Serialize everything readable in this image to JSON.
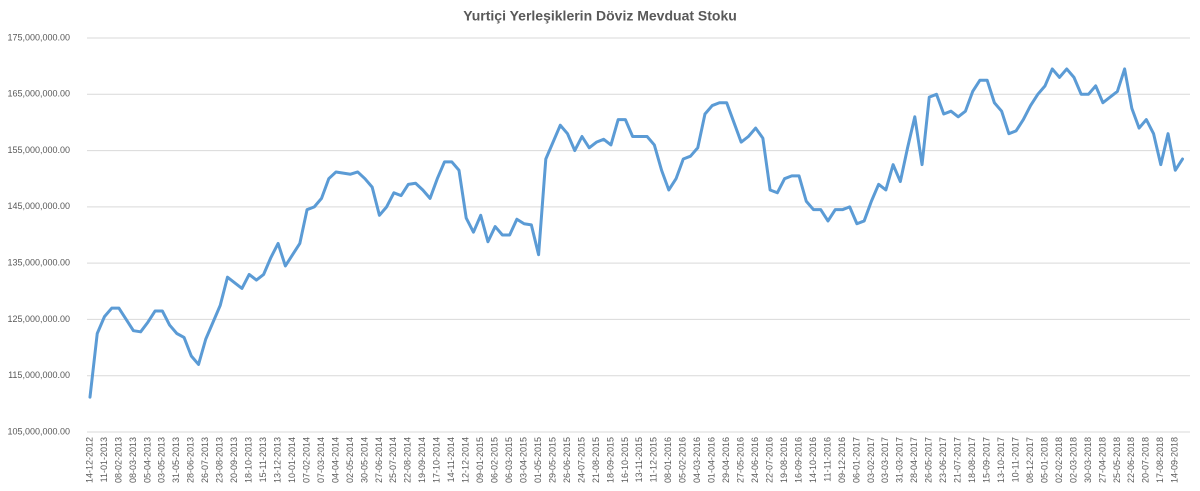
{
  "chart_data": {
    "type": "line",
    "title": "Yurtiçi Yerleşiklerin Döviz Mevduat Stoku",
    "categories": [
      "14-12-2012",
      null,
      "11-01-2013",
      null,
      "08-02-2013",
      null,
      "08-03-2013",
      null,
      "05-04-2013",
      null,
      "03-05-2013",
      null,
      "31-05-2013",
      null,
      "28-06-2013",
      null,
      "26-07-2013",
      null,
      "23-08-2013",
      null,
      "20-09-2013",
      null,
      "18-10-2013",
      null,
      "15-11-2013",
      null,
      "13-12-2013",
      null,
      "10-01-2014",
      null,
      "07-02-2014",
      null,
      "07-03-2014",
      null,
      "04-04-2014",
      null,
      "02-05-2014",
      null,
      "30-05-2014",
      null,
      "27-06-2014",
      null,
      "25-07-2014",
      null,
      "22-08-2014",
      null,
      "19-09-2014",
      null,
      "17-10-2014",
      null,
      "14-11-2014",
      null,
      "12-12-2014",
      null,
      "09-01-2015",
      null,
      "06-02-2015",
      null,
      "06-03-2015",
      null,
      "03-04-2015",
      null,
      "01-05-2015",
      null,
      "29-05-2015",
      null,
      "26-06-2015",
      null,
      "24-07-2015",
      null,
      "21-08-2015",
      null,
      "18-09-2015",
      null,
      "16-10-2015",
      null,
      "13-11-2015",
      null,
      "11-12-2015",
      null,
      "08-01-2016",
      null,
      "05-02-2016",
      null,
      "04-03-2016",
      null,
      "01-04-2016",
      null,
      "29-04-2016",
      null,
      "27-05-2016",
      null,
      "24-06-2016",
      null,
      "22-07-2016",
      null,
      "19-08-2016",
      null,
      "16-09-2016",
      null,
      "14-10-2016",
      null,
      "11-11-2016",
      null,
      "09-12-2016",
      null,
      "06-01-2017",
      null,
      "03-02-2017",
      null,
      "03-03-2017",
      null,
      "31-03-2017",
      null,
      "28-04-2017",
      null,
      "26-05-2017",
      null,
      "23-06-2017",
      null,
      "21-07-2017",
      null,
      "18-08-2017",
      null,
      "15-09-2017",
      null,
      "13-10-2017",
      null,
      "10-11-2017",
      null,
      "08-12-2017",
      null,
      "05-01-2018",
      null,
      "02-02-2018",
      null,
      "02-03-2018",
      null,
      "30-03-2018",
      null,
      "27-04-2018",
      null,
      "25-05-2018",
      null,
      "22-06-2018",
      null,
      "20-07-2018",
      null,
      "17-08-2018",
      null,
      "14-09-2018",
      null
    ],
    "values": [
      111200000,
      122500000,
      125500000,
      127000000,
      127000000,
      125000000,
      123000000,
      122800000,
      124500000,
      126500000,
      126500000,
      124000000,
      122500000,
      121800000,
      118500000,
      117000000,
      121500000,
      124500000,
      127500000,
      132500000,
      131500000,
      130500000,
      133000000,
      132000000,
      133000000,
      136000000,
      138500000,
      134500000,
      136500000,
      138500000,
      144500000,
      145000000,
      146500000,
      150000000,
      151200000,
      151000000,
      150800000,
      151200000,
      150000000,
      148500000,
      143500000,
      145000000,
      147500000,
      147000000,
      149000000,
      149200000,
      148000000,
      146500000,
      150000000,
      153000000,
      153000000,
      151500000,
      143000000,
      140500000,
      143500000,
      138800000,
      141500000,
      140000000,
      140000000,
      142800000,
      142000000,
      141800000,
      136500000,
      153500000,
      156500000,
      159500000,
      158000000,
      155000000,
      157500000,
      155500000,
      156500000,
      157000000,
      156000000,
      160500000,
      160500000,
      157500000,
      157500000,
      157500000,
      156000000,
      151500000,
      148000000,
      150000000,
      153500000,
      154000000,
      155500000,
      161500000,
      163000000,
      163500000,
      163500000,
      160000000,
      156500000,
      157500000,
      159000000,
      157200000,
      148000000,
      147500000,
      150000000,
      150500000,
      150500000,
      146000000,
      144500000,
      144500000,
      142500000,
      144500000,
      144500000,
      145000000,
      142000000,
      142500000,
      146000000,
      149000000,
      148000000,
      152500000,
      149500000,
      155500000,
      161000000,
      152500000,
      164500000,
      165000000,
      161500000,
      162000000,
      161000000,
      162000000,
      165500000,
      167500000,
      167500000,
      163500000,
      162000000,
      158000000,
      158500000,
      160500000,
      163000000,
      165000000,
      166500000,
      169500000,
      168000000,
      169500000,
      168000000,
      165000000,
      165000000,
      166500000,
      163500000,
      164500000,
      165500000,
      169500000,
      162500000,
      159000000,
      160500000,
      158000000,
      152500000,
      158000000,
      151500000,
      153500000
    ],
    "color": "#5b9bd5",
    "ylim": [
      105000000,
      175000000
    ],
    "yticks": [
      {
        "value": 105000000,
        "label": "105,000,000.00"
      },
      {
        "value": 115000000,
        "label": "115,000,000.00"
      },
      {
        "value": 125000000,
        "label": "125,000,000.00"
      },
      {
        "value": 135000000,
        "label": "135,000,000.00"
      },
      {
        "value": 145000000,
        "label": "145,000,000.00"
      },
      {
        "value": 155000000,
        "label": "155,000,000.00"
      },
      {
        "value": 165000000,
        "label": "165,000,000.00"
      },
      {
        "value": 175000000,
        "label": "175,000,000.00"
      }
    ],
    "grid": true
  }
}
